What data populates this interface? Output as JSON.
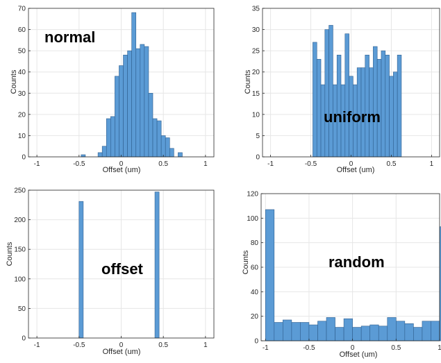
{
  "colors": {
    "bar_fill": "#5b9bd5",
    "bar_edge": "#2f5f8f",
    "grid": "#e6e6e6",
    "axis": "#262626"
  },
  "chart_data": [
    {
      "type": "bar",
      "title": "",
      "overlay_label": "normal",
      "xlabel": "Offset (um)",
      "ylabel": "Counts",
      "xlim": [
        -1.1,
        1.1
      ],
      "ylim": [
        0,
        70
      ],
      "xticks": [
        -1,
        -0.5,
        0,
        0.5,
        1
      ],
      "xtick_labels": [
        "-1",
        "-0.5",
        "0",
        "0.5",
        "1"
      ],
      "yticks": [
        0,
        10,
        20,
        30,
        40,
        50,
        60,
        70
      ],
      "ytick_labels": [
        "0",
        "10",
        "20",
        "30",
        "40",
        "50",
        "60",
        "70"
      ],
      "bin_width": 0.05,
      "bins": [
        {
          "x": -0.45,
          "count": 1
        },
        {
          "x": -0.25,
          "count": 2
        },
        {
          "x": -0.2,
          "count": 5
        },
        {
          "x": -0.15,
          "count": 18
        },
        {
          "x": -0.1,
          "count": 19
        },
        {
          "x": -0.05,
          "count": 38
        },
        {
          "x": 0.0,
          "count": 43
        },
        {
          "x": 0.05,
          "count": 48
        },
        {
          "x": 0.1,
          "count": 50
        },
        {
          "x": 0.15,
          "count": 68
        },
        {
          "x": 0.2,
          "count": 51
        },
        {
          "x": 0.25,
          "count": 53
        },
        {
          "x": 0.3,
          "count": 52
        },
        {
          "x": 0.35,
          "count": 30
        },
        {
          "x": 0.4,
          "count": 18
        },
        {
          "x": 0.45,
          "count": 17
        },
        {
          "x": 0.5,
          "count": 10
        },
        {
          "x": 0.55,
          "count": 9
        },
        {
          "x": 0.6,
          "count": 4
        },
        {
          "x": 0.7,
          "count": 2
        }
      ]
    },
    {
      "type": "bar",
      "title": "",
      "overlay_label": "uniform",
      "xlabel": "Offset (um)",
      "ylabel": "Counts",
      "xlim": [
        -1.1,
        1.1
      ],
      "ylim": [
        0,
        35
      ],
      "xticks": [
        -1,
        -0.5,
        0,
        0.5,
        1
      ],
      "xtick_labels": [
        "-1",
        "-0.5",
        "0",
        "0.5",
        "1"
      ],
      "yticks": [
        0,
        5,
        10,
        15,
        20,
        25,
        30,
        35
      ],
      "ytick_labels": [
        "0",
        "5",
        "10",
        "15",
        "20",
        "25",
        "30",
        "35"
      ],
      "bin_width": 0.05,
      "bins": [
        {
          "x": -0.45,
          "count": 27
        },
        {
          "x": -0.4,
          "count": 23
        },
        {
          "x": -0.35,
          "count": 17
        },
        {
          "x": -0.3,
          "count": 30
        },
        {
          "x": -0.25,
          "count": 31
        },
        {
          "x": -0.2,
          "count": 17
        },
        {
          "x": -0.15,
          "count": 24
        },
        {
          "x": -0.1,
          "count": 17
        },
        {
          "x": -0.05,
          "count": 29
        },
        {
          "x": 0.0,
          "count": 19
        },
        {
          "x": 0.05,
          "count": 17
        },
        {
          "x": 0.1,
          "count": 21
        },
        {
          "x": 0.15,
          "count": 21
        },
        {
          "x": 0.2,
          "count": 24
        },
        {
          "x": 0.25,
          "count": 21
        },
        {
          "x": 0.3,
          "count": 26
        },
        {
          "x": 0.35,
          "count": 23
        },
        {
          "x": 0.4,
          "count": 25
        },
        {
          "x": 0.45,
          "count": 24
        },
        {
          "x": 0.5,
          "count": 19
        },
        {
          "x": 0.55,
          "count": 20
        },
        {
          "x": 0.6,
          "count": 24
        }
      ]
    },
    {
      "type": "bar",
      "title": "",
      "overlay_label": "offset",
      "xlabel": "Offset (um)",
      "ylabel": "Counts",
      "xlim": [
        -1.1,
        1.1
      ],
      "ylim": [
        0,
        250
      ],
      "xticks": [
        -1,
        -0.5,
        0,
        0.5,
        1
      ],
      "xtick_labels": [
        "-1",
        "-0.5",
        "0",
        "0.5",
        "1"
      ],
      "yticks": [
        0,
        50,
        100,
        150,
        200,
        250
      ],
      "ytick_labels": [
        "0",
        "50",
        "100",
        "150",
        "200",
        "250"
      ],
      "bin_width": 0.05,
      "bins": [
        {
          "x": -0.475,
          "count": 231
        },
        {
          "x": 0.425,
          "count": 247
        }
      ]
    },
    {
      "type": "bar",
      "title": "",
      "overlay_label": "random",
      "xlabel": "Offset (um)",
      "ylabel": "Counts",
      "xlim": [
        -1.05,
        1.0
      ],
      "ylim": [
        0,
        120
      ],
      "xticks": [
        -1,
        -0.5,
        0,
        0.5,
        1
      ],
      "xtick_labels": [
        "-1",
        "-0.5",
        "0",
        "0.5",
        "1"
      ],
      "yticks": [
        0,
        20,
        40,
        60,
        80,
        100,
        120
      ],
      "ytick_labels": [
        "0",
        "20",
        "40",
        "60",
        "80",
        "100",
        "120"
      ],
      "bin_width": 0.1,
      "bins": [
        {
          "x": -0.95,
          "count": 107
        },
        {
          "x": -0.85,
          "count": 15
        },
        {
          "x": -0.75,
          "count": 17
        },
        {
          "x": -0.65,
          "count": 15
        },
        {
          "x": -0.55,
          "count": 15
        },
        {
          "x": -0.45,
          "count": 13
        },
        {
          "x": -0.35,
          "count": 16
        },
        {
          "x": -0.25,
          "count": 19
        },
        {
          "x": -0.15,
          "count": 11
        },
        {
          "x": -0.05,
          "count": 18
        },
        {
          "x": 0.05,
          "count": 11
        },
        {
          "x": 0.15,
          "count": 12
        },
        {
          "x": 0.25,
          "count": 13
        },
        {
          "x": 0.35,
          "count": 12
        },
        {
          "x": 0.45,
          "count": 19
        },
        {
          "x": 0.55,
          "count": 16
        },
        {
          "x": 0.65,
          "count": 14
        },
        {
          "x": 0.75,
          "count": 11
        },
        {
          "x": 0.85,
          "count": 16
        },
        {
          "x": 0.95,
          "count": 16
        },
        {
          "x": 1.05,
          "count": 93
        }
      ]
    }
  ]
}
